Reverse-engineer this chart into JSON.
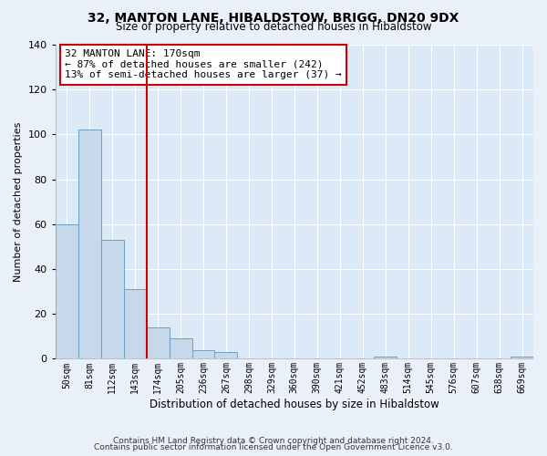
{
  "title": "32, MANTON LANE, HIBALDSTOW, BRIGG, DN20 9DX",
  "subtitle": "Size of property relative to detached houses in Hibaldstow",
  "xlabel": "Distribution of detached houses by size in Hibaldstow",
  "ylabel": "Number of detached properties",
  "bar_labels": [
    "50sqm",
    "81sqm",
    "112sqm",
    "143sqm",
    "174sqm",
    "205sqm",
    "236sqm",
    "267sqm",
    "298sqm",
    "329sqm",
    "360sqm",
    "390sqm",
    "421sqm",
    "452sqm",
    "483sqm",
    "514sqm",
    "545sqm",
    "576sqm",
    "607sqm",
    "638sqm",
    "669sqm"
  ],
  "bar_values": [
    60,
    102,
    53,
    31,
    14,
    9,
    4,
    3,
    0,
    0,
    0,
    0,
    0,
    0,
    1,
    0,
    0,
    0,
    0,
    0,
    1
  ],
  "bar_color": "#c8d8eb",
  "bar_edge_color": "#6ca0c8",
  "vline_color": "#cc0000",
  "annotation_title": "32 MANTON LANE: 170sqm",
  "annotation_line1": "← 87% of detached houses are smaller (242)",
  "annotation_line2": "13% of semi-detached houses are larger (37) →",
  "annotation_box_color": "#cc0000",
  "ylim": [
    0,
    140
  ],
  "yticks": [
    0,
    20,
    40,
    60,
    80,
    100,
    120,
    140
  ],
  "footer1": "Contains HM Land Registry data © Crown copyright and database right 2024.",
  "footer2": "Contains public sector information licensed under the Open Government Licence v3.0.",
  "bg_color": "#eaf0f8",
  "plot_bg_color": "#dce9f6"
}
